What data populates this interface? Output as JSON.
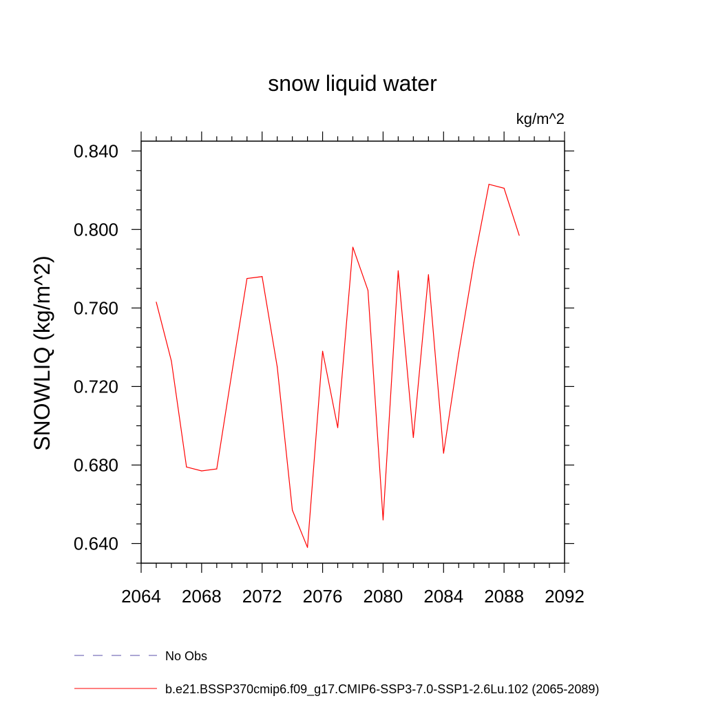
{
  "chart_data": {
    "type": "line",
    "title": "snow liquid water",
    "units_label": "kg/m^2",
    "ylabel": "SNOWLIQ  (kg/m^2)",
    "xlabel": "",
    "xlim": [
      2064,
      2092
    ],
    "ylim": [
      0.63,
      0.845
    ],
    "x_ticks": [
      2064,
      2068,
      2072,
      2076,
      2080,
      2084,
      2088,
      2092
    ],
    "x_tick_labels": [
      "2064",
      "2068",
      "2072",
      "2076",
      "2080",
      "2084",
      "2088",
      "2092"
    ],
    "y_ticks": [
      0.64,
      0.68,
      0.72,
      0.76,
      0.8,
      0.84
    ],
    "y_tick_labels": [
      "0.640",
      "0.680",
      "0.720",
      "0.760",
      "0.800",
      "0.840"
    ],
    "grid": false,
    "series": [
      {
        "name": "b.e21.BSSP370cmip6.f09_g17.CMIP6-SSP3-7.0-SSP1-2.6Lu.102 (2065-2089)",
        "color": "#ff0000",
        "x": [
          2065,
          2066,
          2067,
          2068,
          2069,
          2070,
          2071,
          2072,
          2073,
          2074,
          2075,
          2076,
          2077,
          2078,
          2079,
          2080,
          2081,
          2082,
          2083,
          2084,
          2085,
          2086,
          2087,
          2088,
          2089
        ],
        "y": [
          0.763,
          0.733,
          0.679,
          0.677,
          0.678,
          0.727,
          0.775,
          0.776,
          0.73,
          0.657,
          0.638,
          0.738,
          0.699,
          0.791,
          0.769,
          0.652,
          0.779,
          0.694,
          0.777,
          0.686,
          0.737,
          0.783,
          0.823,
          0.821,
          0.797
        ]
      }
    ],
    "legend": {
      "placement": "bottom",
      "entries": [
        {
          "label": "No Obs",
          "color": "#5a4fa8",
          "style": "dashed"
        },
        {
          "label": "b.e21.BSSP370cmip6.f09_g17.CMIP6-SSP3-7.0-SSP1-2.6Lu.102 (2065-2089)",
          "color": "#ff0000",
          "style": "solid"
        }
      ]
    }
  }
}
